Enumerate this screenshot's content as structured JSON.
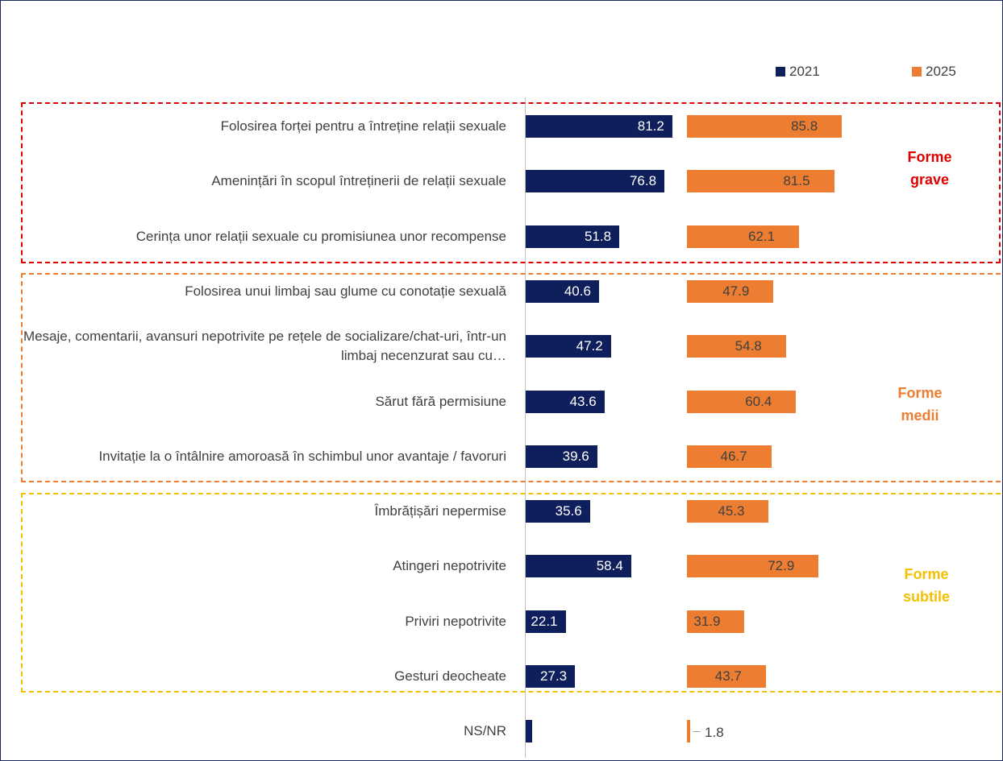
{
  "chart_data": {
    "type": "bar",
    "categories": [
      "Folosirea forței pentru a întreține relații sexuale",
      "Amenințări în scopul întreținerii de relații sexuale",
      "Cerința unor relații sexuale cu promisiunea unor recompense",
      "Folosirea unui limbaj sau glume cu conotație sexuală",
      "Mesaje, comentarii, avansuri nepotrivite pe rețele de socializare/chat-uri, într-un limbaj necenzurat sau cu…",
      "Sărut fără permisiune",
      "Invitație la o întâlnire amoroasă în schimbul unor avantaje / favoruri",
      "Îmbrățișări nepermise",
      "Atingeri nepotrivite",
      "Priviri nepotrivite",
      "Gesturi deocheate",
      "NS/NR"
    ],
    "series": [
      {
        "name": "2021",
        "color": "#0e1f5b",
        "values": [
          81.2,
          76.8,
          51.8,
          40.6,
          47.2,
          43.6,
          39.6,
          35.6,
          58.4,
          22.1,
          27.3,
          3.5
        ],
        "value_labels": [
          "81.2",
          "76.8",
          "51.8",
          "40.6",
          "47.2",
          "43.6",
          "39.6",
          "35.6",
          "58.4",
          "22.1",
          "27.3",
          null
        ]
      },
      {
        "name": "2025",
        "color": "#ed7d31",
        "values": [
          85.8,
          81.5,
          62.1,
          47.9,
          54.8,
          60.4,
          46.7,
          45.3,
          72.9,
          31.9,
          43.7,
          1.8
        ]
      }
    ],
    "groups": [
      {
        "label": "Forme grave",
        "color": "#e00000"
      },
      {
        "label": "Forme medii",
        "color": "#ed7d31"
      },
      {
        "label": "Forme subtile",
        "color": "#f5c000"
      }
    ]
  }
}
